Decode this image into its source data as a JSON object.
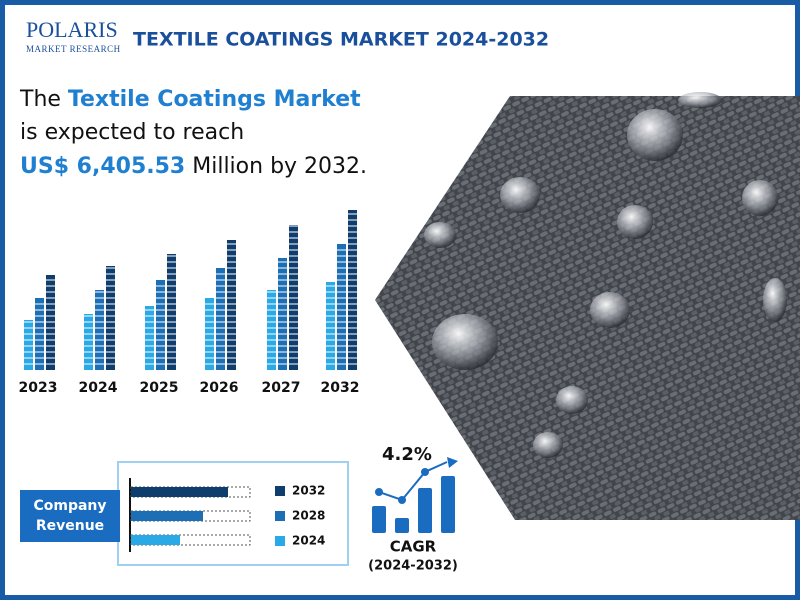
{
  "header": {
    "logo_name": "POLARIS",
    "logo_sub": "MARKET RESEARCH",
    "title": "TEXTILE COATINGS MARKET 2024-2032"
  },
  "headline": {
    "line1_start": "The ",
    "line1_highlight": "Textile Coatings Market",
    "line2": "is expected to reach",
    "line3_highlight": "US$ 6,405.53",
    "line3_end": " Million by 2032."
  },
  "years": [
    "2023",
    "2024",
    "2025",
    "2026",
    "2027",
    "2032"
  ],
  "revenue_panel": {
    "label_line1": "Company",
    "label_line2": "Revenue",
    "legend": [
      "2032",
      "2028",
      "2024"
    ]
  },
  "cagr": {
    "value": "4.2%",
    "label": "CAGR",
    "period": "(2024-2032)"
  }
}
